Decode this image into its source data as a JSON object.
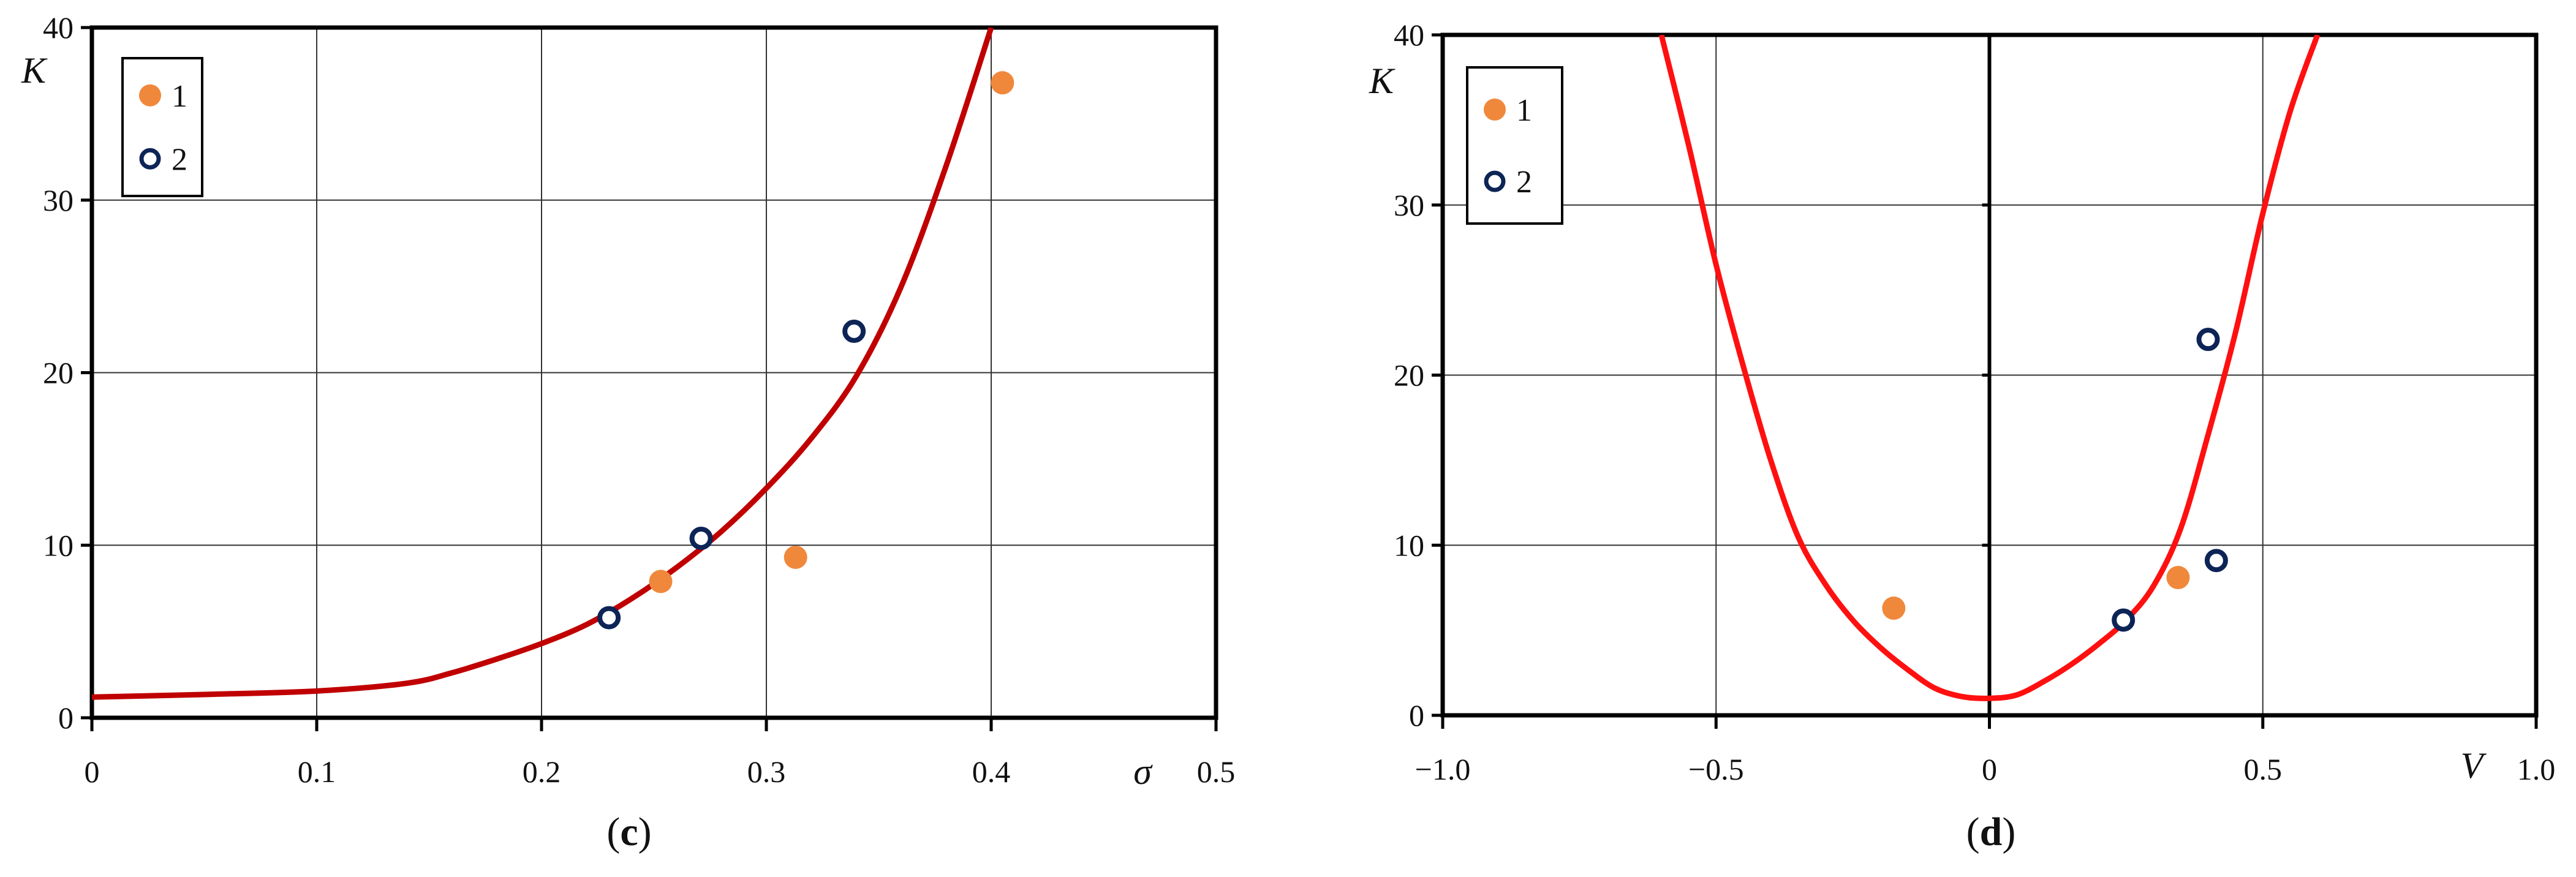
{
  "colors": {
    "series1_fill": "#f0883c",
    "series2_stroke": "#0d2456",
    "curve_c": "#c00000",
    "curve_d": "#ff1010",
    "grid": "#333333",
    "frame": "#000000"
  },
  "chart_data": [
    {
      "type": "scatter",
      "panel_label": "c",
      "xlabel": "σ",
      "ylabel": "K",
      "xlim": [
        0,
        0.5
      ],
      "ylim": [
        0,
        40
      ],
      "x_ticks": [
        "0",
        "0.1",
        "0.2",
        "0.3",
        "0.4",
        "0.5"
      ],
      "y_ticks": [
        "0",
        "10",
        "20",
        "30",
        "40"
      ],
      "grid": true,
      "legend_position": "top-left",
      "series": [
        {
          "name": "1",
          "marker": "filled-circle",
          "x": [
            0.253,
            0.313,
            0.405
          ],
          "y": [
            7.9,
            9.3,
            36.8
          ]
        },
        {
          "name": "2",
          "marker": "open-circle",
          "x": [
            0.23,
            0.271,
            0.339
          ],
          "y": [
            5.8,
            10.4,
            22.4
          ]
        }
      ],
      "curve": {
        "x": [
          0,
          0.05,
          0.1,
          0.14,
          0.16,
          0.18,
          0.2,
          0.22,
          0.24,
          0.26,
          0.28,
          0.3,
          0.32,
          0.34,
          0.36,
          0.38,
          0.4
        ],
        "y": [
          1.2,
          1.35,
          1.55,
          2.0,
          2.6,
          3.4,
          4.3,
          5.4,
          6.9,
          8.7,
          10.8,
          13.3,
          16.2,
          19.8,
          25.0,
          32.0,
          40.0
        ]
      }
    },
    {
      "type": "scatter",
      "panel_label": "d",
      "xlabel": "V",
      "ylabel": "K",
      "xlim": [
        -1.0,
        1.0
      ],
      "ylim": [
        0,
        40
      ],
      "x_ticks": [
        "−1.0",
        "−0.5",
        "0",
        "0.5",
        "1.0"
      ],
      "y_ticks": [
        "0",
        "10",
        "20",
        "30",
        "40"
      ],
      "grid": true,
      "legend_position": "top-left",
      "series": [
        {
          "name": "1",
          "marker": "filled-circle",
          "x": [
            -0.175,
            0.345
          ],
          "y": [
            6.3,
            8.1
          ]
        },
        {
          "name": "2",
          "marker": "open-circle",
          "x": [
            0.245,
            0.4,
            0.415
          ],
          "y": [
            5.6,
            22.1,
            9.1
          ]
        }
      ],
      "curve": {
        "x": [
          -0.6,
          -0.55,
          -0.5,
          -0.45,
          -0.4,
          -0.35,
          -0.3,
          -0.25,
          -0.2,
          -0.15,
          -0.1,
          -0.05,
          0,
          0.05,
          0.1,
          0.15,
          0.2,
          0.25,
          0.3,
          0.35,
          0.4,
          0.45,
          0.5,
          0.55,
          0.6
        ],
        "y": [
          40.0,
          33.5,
          26.5,
          20.5,
          15.0,
          10.5,
          7.7,
          5.6,
          4.0,
          2.7,
          1.6,
          1.1,
          1.0,
          1.2,
          2.0,
          3.0,
          4.2,
          5.6,
          7.6,
          11.0,
          16.5,
          22.5,
          29.5,
          35.5,
          40.0
        ]
      }
    }
  ]
}
